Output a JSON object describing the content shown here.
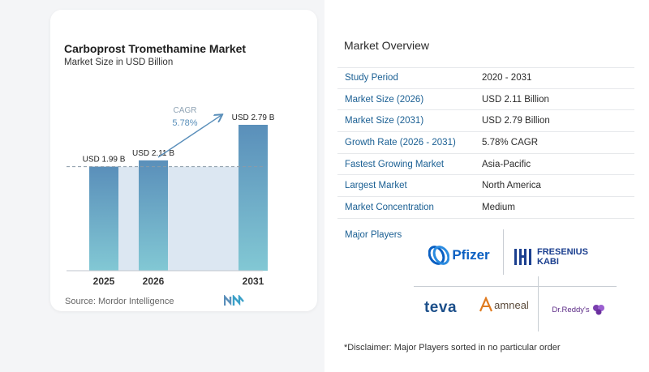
{
  "chart": {
    "title": "Carboprost Tromethamine Market",
    "subtitle": "Market Size in USD Billion",
    "source": "Source:  Mordor Intelligence",
    "cagr_label": "CAGR",
    "cagr_value": "5.78%"
  },
  "chart_data": {
    "type": "bar",
    "title": "Carboprost Tromethamine Market",
    "subtitle": "Market Size in USD Billion",
    "categories": [
      "2025",
      "2026",
      "2031"
    ],
    "values": [
      1.99,
      2.11,
      2.79
    ],
    "data_labels": [
      "USD 1.99 B",
      "USD 2.11 B",
      "USD 2.79 B"
    ],
    "ylim": [
      0,
      2.79
    ],
    "annotation": {
      "text": "CAGR 5.78%",
      "from": "2026",
      "to": "2031"
    },
    "reference_line": {
      "value": 1.99,
      "style": "dashed"
    },
    "grid": false,
    "legend": "none",
    "colors": {
      "bar_top": "#5a8fba",
      "bar_bottom": "#82c8d4",
      "band": "#dce7f2",
      "arrow": "#5a8fba"
    }
  },
  "overview": {
    "title": "Market Overview",
    "rows": [
      {
        "key": "Study Period",
        "value": "2020 - 2031"
      },
      {
        "key": "Market Size (2026)",
        "value": "USD 2.11 Billion"
      },
      {
        "key": "Market Size (2031)",
        "value": "USD 2.79 Billion"
      },
      {
        "key": "Growth Rate (2026 - 2031)",
        "value": "5.78% CAGR"
      },
      {
        "key": "Fastest Growing Market",
        "value": "Asia-Pacific"
      },
      {
        "key": "Largest Market",
        "value": "North America"
      },
      {
        "key": "Market Concentration",
        "value": "Medium"
      }
    ],
    "players_label": "Major Players",
    "players": {
      "pfizer": "Pfizer",
      "fresenius_1": "FRESENIUS",
      "fresenius_2": "KABI",
      "teva": "teva",
      "amneal": "amneal",
      "drreddys": "Dr.Reddy's"
    },
    "disclaimer": "*Disclaimer: Major Players sorted in no particular order"
  }
}
